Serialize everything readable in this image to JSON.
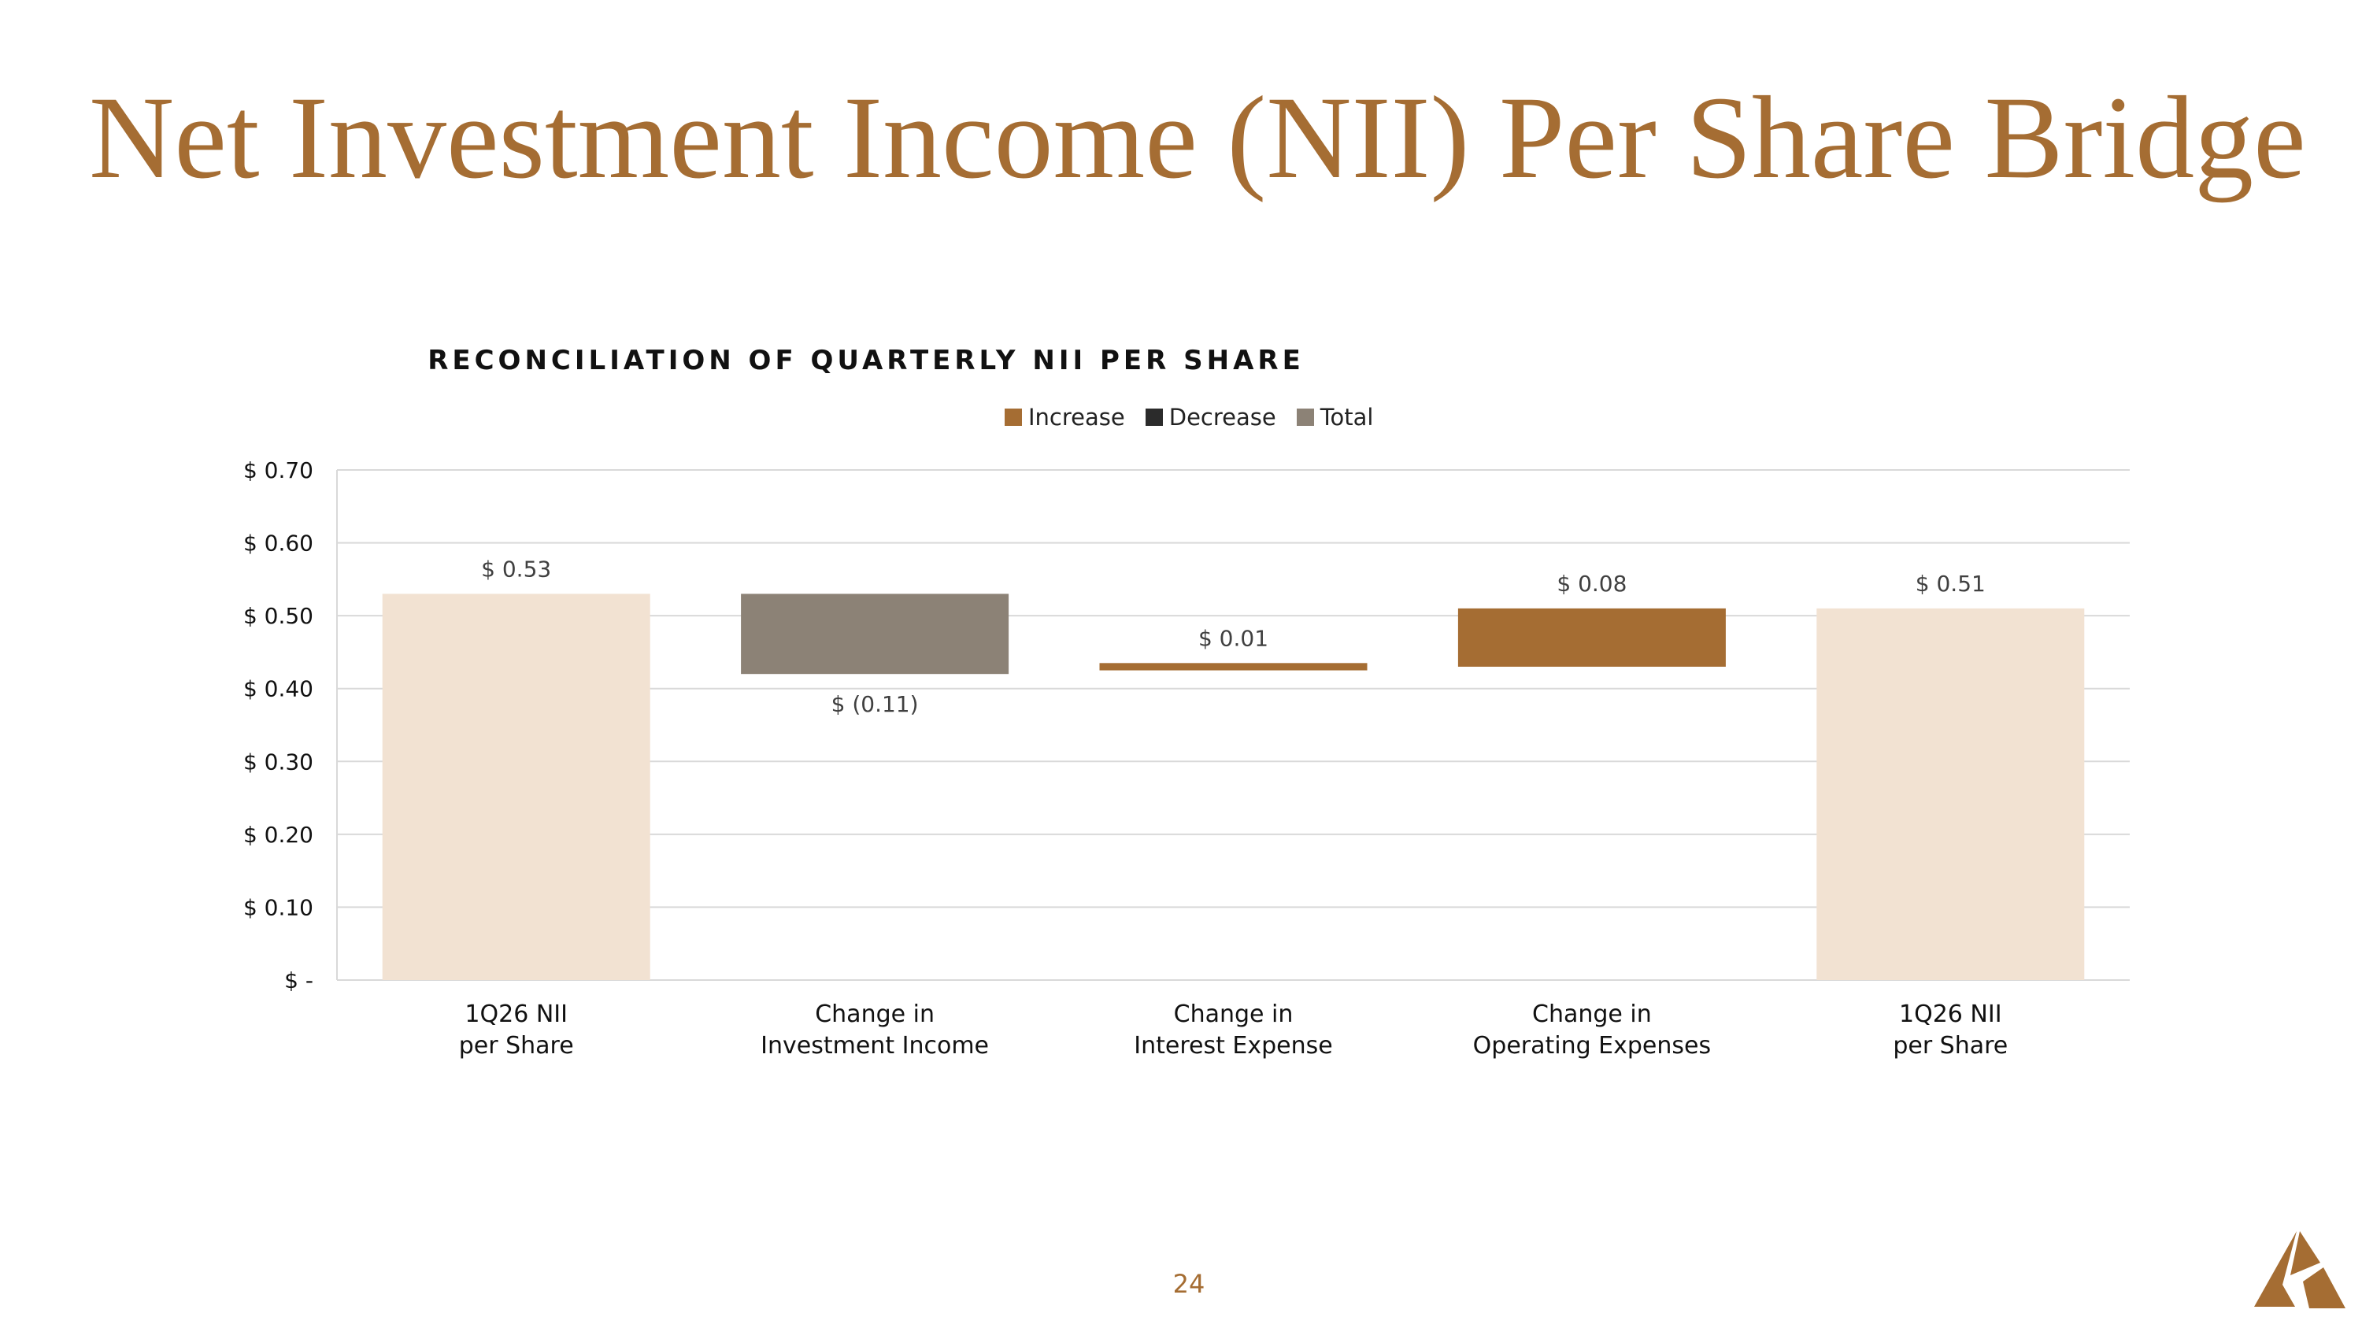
{
  "slide": {
    "title": "Net Investment Income (NII) Per Share Bridge",
    "page_number": "24"
  },
  "colors": {
    "title": "#a56d33",
    "increase": "#a56d33",
    "decrease": "#2b2b2b",
    "total": "#8c8276",
    "endpoint_bar": "#f2e2d2",
    "grid": "#d9d9d9"
  },
  "logo": {
    "icon": "triangle-logo-icon"
  },
  "chart_data": {
    "type": "bar",
    "title": "RECONCILIATION OF QUARTERLY NII PER SHARE",
    "legend": {
      "placement": "top-center",
      "entries": [
        {
          "label": "Increase",
          "color": "#a56d33"
        },
        {
          "label": "Decrease",
          "color": "#2b2b2b"
        },
        {
          "label": "Total",
          "color": "#8c8276"
        }
      ]
    },
    "ylim": [
      0,
      0.7
    ],
    "yticks": [
      {
        "value": 0.7,
        "label": "$ 0.70"
      },
      {
        "value": 0.6,
        "label": "$ 0.60"
      },
      {
        "value": 0.5,
        "label": "$ 0.50"
      },
      {
        "value": 0.4,
        "label": "$ 0.40"
      },
      {
        "value": 0.3,
        "label": "$ 0.30"
      },
      {
        "value": 0.2,
        "label": "$ 0.20"
      },
      {
        "value": 0.1,
        "label": "$ 0.10"
      },
      {
        "value": 0,
        "label": "$ -"
      }
    ],
    "grid": true,
    "bars": [
      {
        "category": [
          "1Q26 NII",
          "per Share"
        ],
        "start": 0,
        "end": 0.53,
        "value_label": "$ 0.53",
        "label_position": "above",
        "color": "#f2e2d2"
      },
      {
        "category": [
          "Change in",
          "Investment Income"
        ],
        "start": 0.42,
        "end": 0.53,
        "value_label": "$ (0.11)",
        "label_position": "below",
        "color": "#8c8276"
      },
      {
        "category": [
          "Change in",
          "Interest Expense"
        ],
        "start": 0.425,
        "end": 0.435,
        "value_label": "$ 0.01",
        "label_position": "above",
        "color": "#a56d33"
      },
      {
        "category": [
          "Change in",
          "Operating Expenses"
        ],
        "start": 0.43,
        "end": 0.51,
        "value_label": "$ 0.08",
        "label_position": "above",
        "color": "#a56d33"
      },
      {
        "category": [
          "1Q26 NII",
          "per Share"
        ],
        "start": 0,
        "end": 0.51,
        "value_label": "$ 0.51",
        "label_position": "above",
        "color": "#f2e2d2"
      }
    ]
  }
}
